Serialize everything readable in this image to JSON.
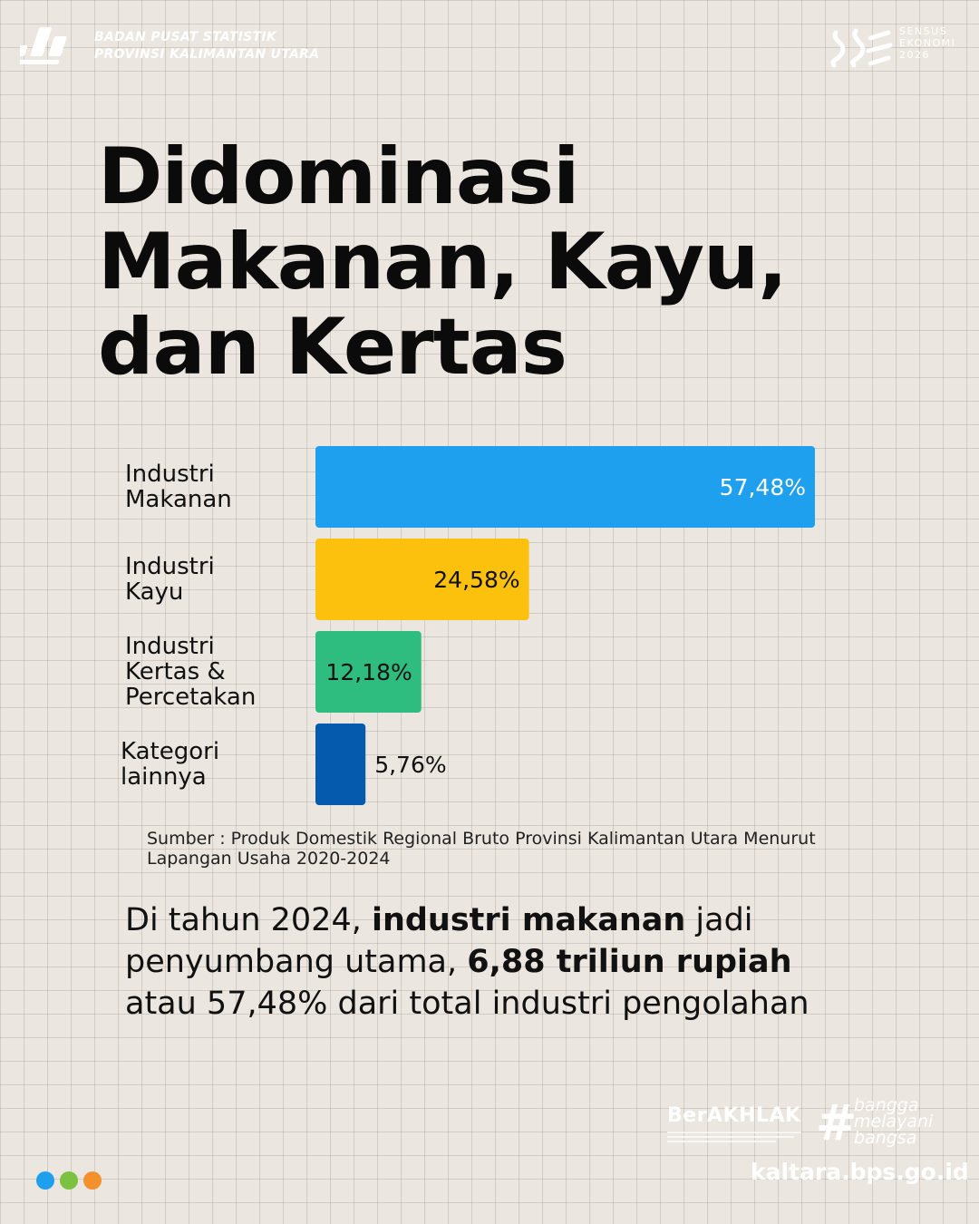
{
  "header": {
    "org_line1": "BADAN PUSAT STATISTIK",
    "org_line2": "PROVINSI KALIMANTAN UTARA",
    "census_line1": "SENSUS",
    "census_line2": "EKONOMI",
    "census_line3": "2026"
  },
  "title_lines": [
    "Didominasi",
    "Makanan, Kayu,",
    "dan Kertas"
  ],
  "chart_data": {
    "type": "bar",
    "orientation": "horizontal",
    "categories": [
      [
        "Industri",
        "Makanan"
      ],
      [
        "Industri",
        "Kayu"
      ],
      [
        "Industri",
        "Kertas &",
        "Percetakan"
      ],
      [
        "Kategori",
        "lainnya"
      ]
    ],
    "values": [
      57.48,
      24.58,
      12.18,
      5.76
    ],
    "value_labels": [
      "57,48%",
      "24,58%",
      "12,18%",
      "5,76%"
    ],
    "colors": [
      "#1fa0ef",
      "#fcc10d",
      "#2fbd7f",
      "#065aae"
    ],
    "grid": false,
    "legend": "none"
  },
  "source": "Sumber : Produk Domestik Regional Bruto Provinsi Kalimantan Utara Menurut Lapangan Usaha 2020-2024",
  "summary": {
    "part1": "Di tahun 2024, ",
    "bold1": "industri makanan",
    "part2": " jadi penyumbang utama, ",
    "bold2": "6,88 triliun rupiah",
    "part3": " atau 57,48% dari total industri pengolahan"
  },
  "footer": {
    "berakhlak": "BerAKHLAK",
    "bangga_lines": [
      "bangga",
      "melayani",
      "bangsa"
    ],
    "website": "kaltara.bps.go.id"
  },
  "dot_colors": [
    "#1fa0ef",
    "#7cc242",
    "#f3922d"
  ]
}
